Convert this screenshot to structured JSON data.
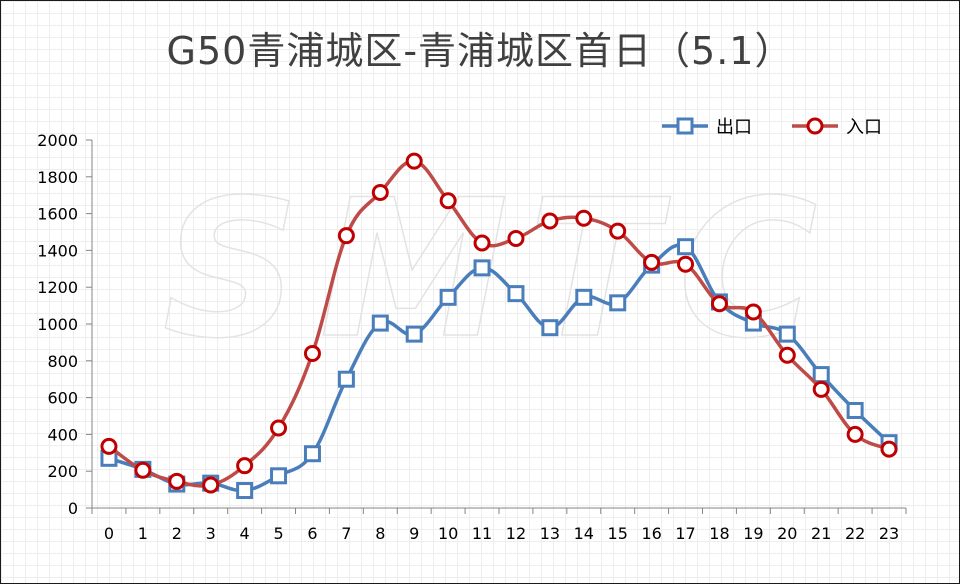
{
  "title": "G50青浦城区-青浦城区首日（5.1）",
  "watermark": "SMTC",
  "chart_data": {
    "type": "line",
    "categories": [
      "0",
      "1",
      "2",
      "3",
      "4",
      "5",
      "6",
      "7",
      "8",
      "9",
      "10",
      "11",
      "12",
      "13",
      "14",
      "15",
      "16",
      "17",
      "18",
      "19",
      "20",
      "21",
      "22",
      "23"
    ],
    "ylim": [
      0,
      2000
    ],
    "yticks": [
      0,
      200,
      400,
      600,
      800,
      1000,
      1200,
      1400,
      1600,
      1800,
      2000
    ],
    "legend_position": "top-right",
    "series": [
      {
        "name": "出口",
        "marker": "square",
        "color": "#4a7ebb",
        "values": [
          270,
          210,
          130,
          135,
          95,
          175,
          295,
          700,
          1005,
          945,
          1145,
          1305,
          1165,
          980,
          1145,
          1115,
          1320,
          1420,
          1120,
          1005,
          945,
          725,
          530,
          355
        ]
      },
      {
        "name": "入口",
        "marker": "circle",
        "color": "#be4b48",
        "markerColor": "#c00000",
        "values": [
          335,
          205,
          145,
          125,
          230,
          435,
          840,
          1480,
          1715,
          1885,
          1670,
          1440,
          1465,
          1560,
          1575,
          1505,
          1335,
          1325,
          1110,
          1065,
          830,
          645,
          400,
          320
        ]
      }
    ]
  }
}
